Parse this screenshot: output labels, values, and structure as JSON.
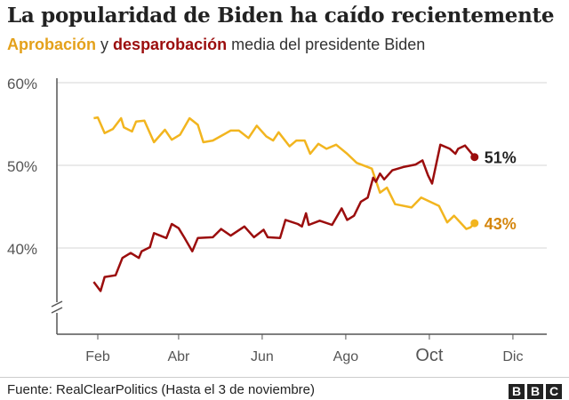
{
  "title": "La popularidad de Biden ha caído recientemente",
  "subtitle": {
    "approval": "Aprobación",
    "connector": "y",
    "disapproval": "desparobación",
    "rest": "media del presidente Biden"
  },
  "source": "Fuente: RealClearPolitics (Hasta el 3 de noviembre)",
  "logo": "BBC",
  "chart_data": {
    "type": "line",
    "title": "La popularidad de Biden ha caído recientemente",
    "xlabel": "",
    "ylabel": "",
    "ylim": [
      30,
      60
    ],
    "y_axis_break": true,
    "grid": true,
    "yticks": [
      {
        "value": 60,
        "label": "60%"
      },
      {
        "value": 50,
        "label": "50%"
      },
      {
        "value": 40,
        "label": "40%"
      }
    ],
    "xticks": [
      {
        "date": "2021-02-01",
        "label": "Feb"
      },
      {
        "date": "2021-04-01",
        "label": "Abr"
      },
      {
        "date": "2021-06-01",
        "label": "Jun"
      },
      {
        "date": "2021-08-01",
        "label": "Ago"
      },
      {
        "date": "2021-10-01",
        "label": "Oct"
      },
      {
        "date": "2021-12-01",
        "label": "Dic"
      }
    ],
    "series": [
      {
        "name": "Aprobación",
        "color": "#f2b51f",
        "label_color": "#d4860d",
        "end_label": "43%",
        "points": [
          [
            "2021-01-29",
            55.7
          ],
          [
            "2021-02-01",
            55.8
          ],
          [
            "2021-02-06",
            53.9
          ],
          [
            "2021-02-12",
            54.4
          ],
          [
            "2021-02-18",
            55.7
          ],
          [
            "2021-02-20",
            54.6
          ],
          [
            "2021-02-26",
            54.1
          ],
          [
            "2021-03-01",
            55.3
          ],
          [
            "2021-03-07",
            55.4
          ],
          [
            "2021-03-14",
            52.8
          ],
          [
            "2021-03-22",
            54.3
          ],
          [
            "2021-03-27",
            53.1
          ],
          [
            "2021-04-02",
            53.7
          ],
          [
            "2021-04-09",
            55.7
          ],
          [
            "2021-04-15",
            54.9
          ],
          [
            "2021-04-19",
            52.8
          ],
          [
            "2021-04-26",
            53.0
          ],
          [
            "2021-05-09",
            54.2
          ],
          [
            "2021-05-15",
            54.2
          ],
          [
            "2021-05-22",
            53.3
          ],
          [
            "2021-05-28",
            54.8
          ],
          [
            "2021-06-04",
            53.5
          ],
          [
            "2021-06-09",
            53.0
          ],
          [
            "2021-06-13",
            54.0
          ],
          [
            "2021-06-21",
            52.3
          ],
          [
            "2021-06-26",
            53.0
          ],
          [
            "2021-07-02",
            53.0
          ],
          [
            "2021-07-06",
            51.4
          ],
          [
            "2021-07-12",
            52.6
          ],
          [
            "2021-07-18",
            52.0
          ],
          [
            "2021-07-25",
            52.5
          ],
          [
            "2021-08-02",
            51.4
          ],
          [
            "2021-08-09",
            50.3
          ],
          [
            "2021-08-20",
            49.6
          ],
          [
            "2021-08-26",
            46.7
          ],
          [
            "2021-08-31",
            47.3
          ],
          [
            "2021-09-06",
            45.3
          ],
          [
            "2021-09-18",
            44.9
          ],
          [
            "2021-09-25",
            46.1
          ],
          [
            "2021-10-08",
            45.1
          ],
          [
            "2021-10-14",
            43.1
          ],
          [
            "2021-10-19",
            43.9
          ],
          [
            "2021-10-28",
            42.3
          ],
          [
            "2021-10-31",
            42.5
          ],
          [
            "2021-11-03",
            43.0
          ]
        ]
      },
      {
        "name": "desparobación",
        "color": "#9b0d0d",
        "label_color": "#222222",
        "end_label": "51%",
        "points": [
          [
            "2021-01-29",
            35.9
          ],
          [
            "2021-02-03",
            34.8
          ],
          [
            "2021-02-06",
            36.5
          ],
          [
            "2021-02-14",
            36.7
          ],
          [
            "2021-02-19",
            38.8
          ],
          [
            "2021-02-25",
            39.4
          ],
          [
            "2021-03-03",
            38.8
          ],
          [
            "2021-03-05",
            39.6
          ],
          [
            "2021-03-11",
            40.1
          ],
          [
            "2021-03-14",
            41.8
          ],
          [
            "2021-03-23",
            41.2
          ],
          [
            "2021-03-27",
            42.9
          ],
          [
            "2021-04-01",
            42.4
          ],
          [
            "2021-04-05",
            41.3
          ],
          [
            "2021-04-11",
            39.6
          ],
          [
            "2021-04-15",
            41.2
          ],
          [
            "2021-04-26",
            41.3
          ],
          [
            "2021-05-02",
            42.3
          ],
          [
            "2021-05-09",
            41.5
          ],
          [
            "2021-05-19",
            42.6
          ],
          [
            "2021-05-26",
            41.3
          ],
          [
            "2021-06-02",
            42.2
          ],
          [
            "2021-06-05",
            41.3
          ],
          [
            "2021-06-14",
            41.2
          ],
          [
            "2021-06-18",
            43.4
          ],
          [
            "2021-06-27",
            42.9
          ],
          [
            "2021-06-30",
            42.6
          ],
          [
            "2021-07-03",
            44.2
          ],
          [
            "2021-07-05",
            42.8
          ],
          [
            "2021-07-13",
            43.3
          ],
          [
            "2021-07-22",
            42.8
          ],
          [
            "2021-07-29",
            44.8
          ],
          [
            "2021-08-02",
            43.4
          ],
          [
            "2021-08-07",
            43.9
          ],
          [
            "2021-08-12",
            45.6
          ],
          [
            "2021-08-17",
            46.1
          ],
          [
            "2021-08-21",
            48.5
          ],
          [
            "2021-08-23",
            48.0
          ],
          [
            "2021-08-26",
            49.0
          ],
          [
            "2021-08-29",
            48.3
          ],
          [
            "2021-09-04",
            49.4
          ],
          [
            "2021-09-12",
            49.8
          ],
          [
            "2021-09-21",
            50.1
          ],
          [
            "2021-09-26",
            50.6
          ],
          [
            "2021-09-30",
            48.8
          ],
          [
            "2021-10-03",
            47.8
          ],
          [
            "2021-10-09",
            52.5
          ],
          [
            "2021-10-16",
            52.0
          ],
          [
            "2021-10-20",
            51.4
          ],
          [
            "2021-10-22",
            52.0
          ],
          [
            "2021-10-27",
            52.4
          ],
          [
            "2021-11-03",
            51.0
          ]
        ]
      }
    ]
  }
}
